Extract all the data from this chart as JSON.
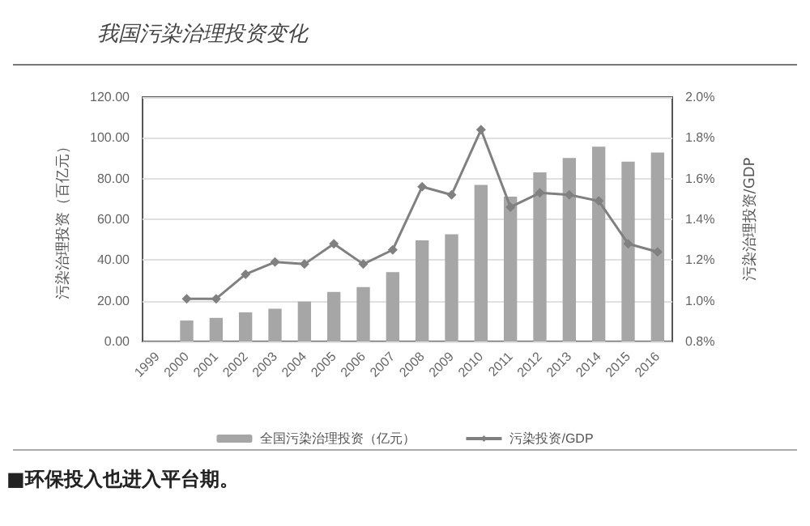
{
  "chart_data": {
    "type": "bar",
    "title": "我国污染治理投资变化",
    "ylabel": "污染治理投资（百亿元）",
    "y2label": "污染治理投资/GDP",
    "categories": [
      "1999",
      "2000",
      "2001",
      "2002",
      "2003",
      "2004",
      "2005",
      "2006",
      "2007",
      "2008",
      "2009",
      "2010",
      "2011",
      "2012",
      "2013",
      "2014",
      "2015",
      "2016"
    ],
    "series": [
      {
        "name": "全国污染治理投资（亿元）",
        "color": "#a6a6a6",
        "values": [
          null,
          10.3,
          11.6,
          14.3,
          16.1,
          19.6,
          24.3,
          26.7,
          34.1,
          49.7,
          52.6,
          76.9,
          71.1,
          83.0,
          90.1,
          95.7,
          88.3,
          92.8
        ]
      },
      {
        "name": "污染投资/GDP",
        "type": "line",
        "axis": "y2",
        "color": "#808080",
        "marker": "diamond",
        "values": [
          null,
          1.01,
          1.01,
          1.13,
          1.19,
          1.18,
          1.28,
          1.18,
          1.25,
          1.56,
          1.52,
          1.84,
          1.46,
          1.53,
          1.52,
          1.49,
          1.28,
          1.24
        ]
      }
    ],
    "ylim": [
      0,
      120
    ],
    "yticks": [
      {
        "value": 0,
        "label": "0.00"
      },
      {
        "value": 20,
        "label": "20.00"
      },
      {
        "value": 40,
        "label": "40.00"
      },
      {
        "value": 60,
        "label": "60.00"
      },
      {
        "value": 80,
        "label": "80.00"
      },
      {
        "value": 100,
        "label": "100.00"
      },
      {
        "value": 120,
        "label": "120.00"
      }
    ],
    "y2lim": [
      0.8,
      2.0
    ],
    "y2ticks": [
      {
        "value": 0.8,
        "label": "0.8%"
      },
      {
        "value": 1.0,
        "label": "1.0%"
      },
      {
        "value": 1.2,
        "label": "1.2%"
      },
      {
        "value": 1.4,
        "label": "1.4%"
      },
      {
        "value": 1.6,
        "label": "1.6%"
      },
      {
        "value": 1.8,
        "label": "1.8%"
      },
      {
        "value": 2.0,
        "label": "2.0%"
      }
    ],
    "grid": "y",
    "legend": "bottom",
    "annotations": [
      "■环保投入也进入平台期。"
    ]
  }
}
